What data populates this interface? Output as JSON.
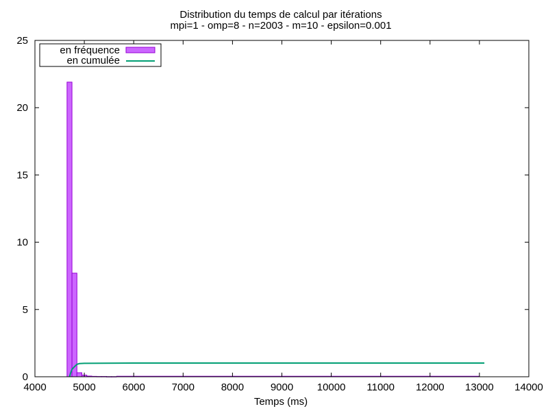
{
  "chart_data": {
    "type": "bar",
    "title": "Distribution du temps de calcul par itérations",
    "subtitle": "mpi=1 - omp=8 - n=2003 - m=10 - epsilon=0.001",
    "xlabel": "Temps (ms)",
    "ylabel": "",
    "xlim": [
      4000,
      14000
    ],
    "ylim": [
      0,
      25
    ],
    "xticks": [
      4000,
      5000,
      6000,
      7000,
      8000,
      9000,
      10000,
      11000,
      12000,
      13000,
      14000
    ],
    "yticks": [
      0,
      5,
      10,
      15,
      20,
      25
    ],
    "grid": false,
    "legend_position": "top-left",
    "series": [
      {
        "name": "en fréquence",
        "type": "bar",
        "color": "#cc66ff",
        "edge_color": "#9400d3",
        "bin_width": 100,
        "bins": [
          {
            "x": 4700,
            "y": 21.9
          },
          {
            "x": 4800,
            "y": 7.7
          },
          {
            "x": 4900,
            "y": 0.3
          },
          {
            "x": 5000,
            "y": 0.12
          },
          {
            "x": 5100,
            "y": 0.05
          },
          {
            "x": 5200,
            "y": 0.03
          },
          {
            "x": 5300,
            "y": 0.02
          },
          {
            "x": 5400,
            "y": 0.02
          },
          {
            "x": 5500,
            "y": 0.01
          },
          {
            "x": 5600,
            "y": 0.01
          }
        ],
        "tail_until": 13000
      },
      {
        "name": "en cumulée",
        "type": "line",
        "color": "#009e73",
        "points": [
          [
            4700,
            0.0
          ],
          [
            4720,
            0.25
          ],
          [
            4750,
            0.55
          ],
          [
            4800,
            0.75
          ],
          [
            4850,
            0.92
          ],
          [
            4900,
            0.98
          ],
          [
            5000,
            1.0
          ],
          [
            6000,
            1.02
          ],
          [
            13100,
            1.02
          ]
        ]
      }
    ]
  }
}
